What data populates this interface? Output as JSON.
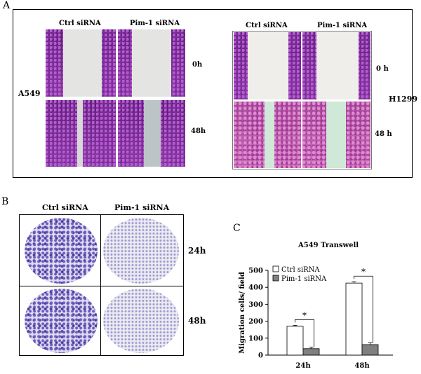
{
  "panelA": {
    "letter": "A",
    "cellLine1": "A549",
    "cellLine2": "H1299",
    "colCtrl": "Ctrl  siRNA",
    "colPim": "Pim-1 siRNA",
    "t0": "0h",
    "t48": "48h",
    "t0b": "0 h",
    "t48b": "48 h"
  },
  "panelB": {
    "letter": "B",
    "colCtrl": "Ctrl  siRNA",
    "colPim": "Pim-1 siRNA",
    "t24": "24h",
    "t48": "48h"
  },
  "panelC": {
    "letter": "C"
  },
  "chart_data": {
    "type": "bar",
    "title": "A549 Transwell",
    "ylabel": "Migration cells/ field",
    "xlabel": "",
    "categories": [
      "24h",
      "48h"
    ],
    "ylim": [
      0,
      500
    ],
    "yticks": [
      0,
      100,
      200,
      300,
      400,
      500
    ],
    "series": [
      {
        "name": "Ctrl siRNA",
        "values": [
          170,
          425
        ],
        "errors": [
          6,
          8
        ],
        "color": "#ffffff"
      },
      {
        "name": "Pim-1 siRNA",
        "values": [
          38,
          62
        ],
        "errors": [
          8,
          10
        ],
        "color": "#808080"
      }
    ],
    "significance": [
      "*",
      "*"
    ],
    "legend": "top-left"
  }
}
